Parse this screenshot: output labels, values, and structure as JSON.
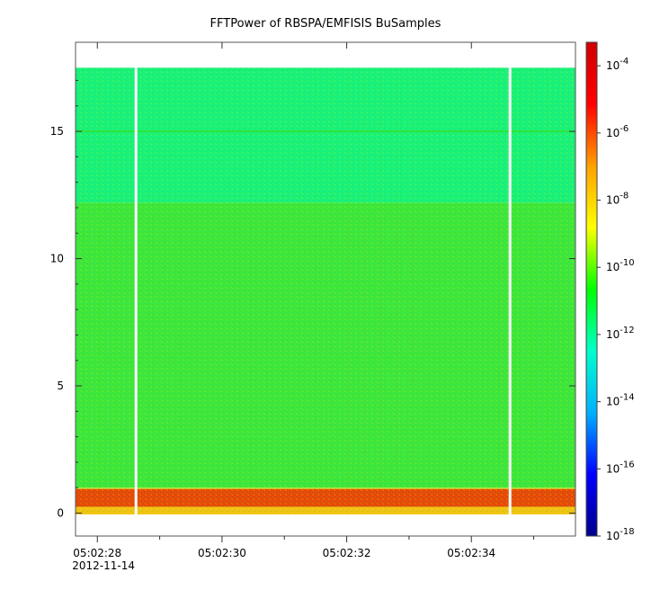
{
  "chart_data": {
    "type": "heatmap",
    "title": "FFTPower of RBSPA/EMFISIS  BuSamples",
    "xlabel": "",
    "ylabel": "",
    "x": {
      "ticks": [
        {
          "label": "05:02:28",
          "sublabel": "2012-11-14",
          "t": 0
        },
        {
          "label": "05:02:30",
          "t": 2
        },
        {
          "label": "05:02:32",
          "t": 4
        },
        {
          "label": "05:02:34",
          "t": 6
        }
      ],
      "minor_ticks": [
        1,
        3,
        5,
        7
      ],
      "range": [
        -0.35,
        7.67
      ]
    },
    "y": {
      "ticks": [
        0,
        5,
        10,
        15
      ],
      "range": [
        -0.9,
        18.5
      ]
    },
    "data_extent": {
      "y_top": 17.5,
      "y_bottom": -0.05
    },
    "gaps_t": [
      0.62,
      6.62
    ],
    "colorbar": {
      "scale": "log",
      "range_exponents": [
        -18,
        -3.3
      ],
      "ticks": [
        {
          "base": "10",
          "exp": "-4",
          "value_exp": -4
        },
        {
          "base": "10",
          "exp": "-6",
          "value_exp": -6
        },
        {
          "base": "10",
          "exp": "-8",
          "value_exp": -8
        },
        {
          "base": "10",
          "exp": "-10",
          "value_exp": -10
        },
        {
          "base": "10",
          "exp": "-12",
          "value_exp": -12
        },
        {
          "base": "10",
          "exp": "-14",
          "value_exp": -14
        },
        {
          "base": "10",
          "exp": "-16",
          "value_exp": -16
        },
        {
          "base": "10",
          "exp": "-18",
          "value_exp": -18
        }
      ],
      "colormap": [
        "#00008b",
        "#0000ff",
        "#00b0ff",
        "#00ffcc",
        "#00ff00",
        "#ffff00",
        "#ffa000",
        "#ff0000",
        "#d00000"
      ]
    },
    "bands": [
      {
        "y_from": 12.2,
        "y_to": 17.5,
        "log_power": -12.7,
        "color": "#1af07a"
      },
      {
        "y_from": 1.0,
        "y_to": 12.2,
        "log_power": -10.3,
        "color": "#3ee53c"
      },
      {
        "y_from": 0.95,
        "y_to": 1.0,
        "log_power": -9.0,
        "color": "#c8e61c"
      },
      {
        "y_from": 0.25,
        "y_to": 0.95,
        "log_power": -5.5,
        "color": "#e84808"
      },
      {
        "y_from": -0.05,
        "y_to": 0.25,
        "log_power": -8.0,
        "color": "#f2c212"
      }
    ],
    "lines": [
      {
        "y": 15.0,
        "log_power": -11.0,
        "color": "#2ee33a"
      }
    ]
  }
}
